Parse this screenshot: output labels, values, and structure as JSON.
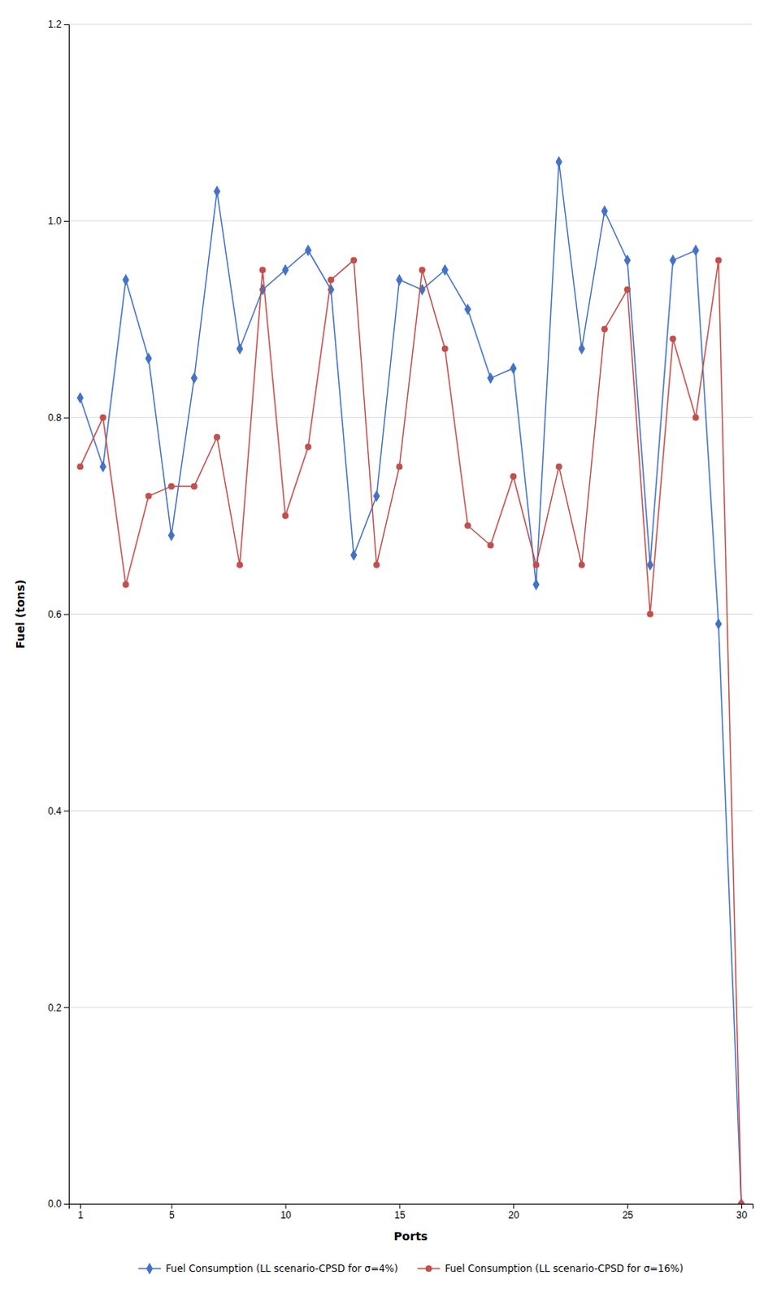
{
  "chart_data": {
    "type": "line",
    "xlabel": "Ports",
    "ylabel": "Fuel (tons)",
    "x": [
      1,
      2,
      3,
      4,
      5,
      6,
      7,
      8,
      9,
      10,
      11,
      12,
      13,
      14,
      15,
      16,
      17,
      18,
      19,
      20,
      21,
      22,
      23,
      24,
      25,
      26,
      27,
      28,
      29,
      30
    ],
    "series": [
      {
        "name": "Fuel Consumption (LL scenario-CPSD for σ=4%)",
        "color": "#4472C4",
        "marker": "diamond",
        "values": [
          0.82,
          0.75,
          0.94,
          0.86,
          0.68,
          0.84,
          1.03,
          0.87,
          0.93,
          0.95,
          0.97,
          0.93,
          0.66,
          0.72,
          0.94,
          0.93,
          0.95,
          0.91,
          0.84,
          0.85,
          0.63,
          1.06,
          0.87,
          1.01,
          0.96,
          0.65,
          0.96,
          0.97,
          0.59,
          0.0
        ]
      },
      {
        "name": "Fuel Consumption (LL scenario-CPSD for σ=16%)",
        "color": "#C0504D",
        "marker": "circle",
        "values": [
          0.75,
          0.8,
          0.63,
          0.72,
          0.73,
          0.73,
          0.78,
          0.65,
          0.95,
          0.7,
          0.77,
          0.94,
          0.96,
          0.65,
          0.75,
          0.95,
          0.87,
          0.69,
          0.67,
          0.74,
          0.65,
          0.75,
          0.65,
          0.89,
          0.93,
          0.6,
          0.88,
          0.8,
          0.96,
          0.0
        ]
      }
    ],
    "xlim": [
      0.5,
      30.5
    ],
    "xticks": [
      1,
      5,
      10,
      15,
      20,
      25,
      30
    ],
    "ylim": [
      0,
      1.2
    ],
    "yticks": [
      {
        "value": 0,
        "label": "0.0"
      },
      0.2,
      0.4,
      0.6,
      0.8,
      {
        "value": 1.0,
        "label": "1.0"
      },
      1.2
    ],
    "grid": "y",
    "legend": "bottom"
  }
}
